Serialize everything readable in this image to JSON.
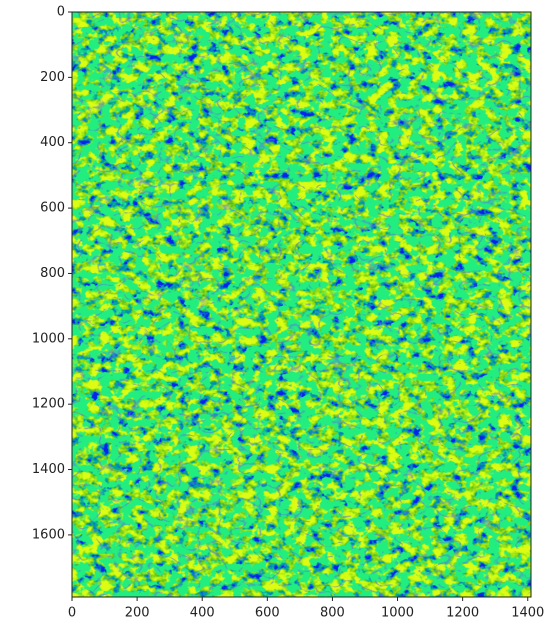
{
  "chart_data": {
    "type": "image",
    "color": "#22ee80",
    "xlim": [
      0,
      1410
    ],
    "ylim": [
      1790,
      0
    ],
    "xticks": [
      0,
      200,
      400,
      600,
      800,
      1000,
      1200,
      1400
    ],
    "yticks": [
      0,
      200,
      400,
      600,
      800,
      1000,
      1200,
      1400,
      1600
    ]
  }
}
